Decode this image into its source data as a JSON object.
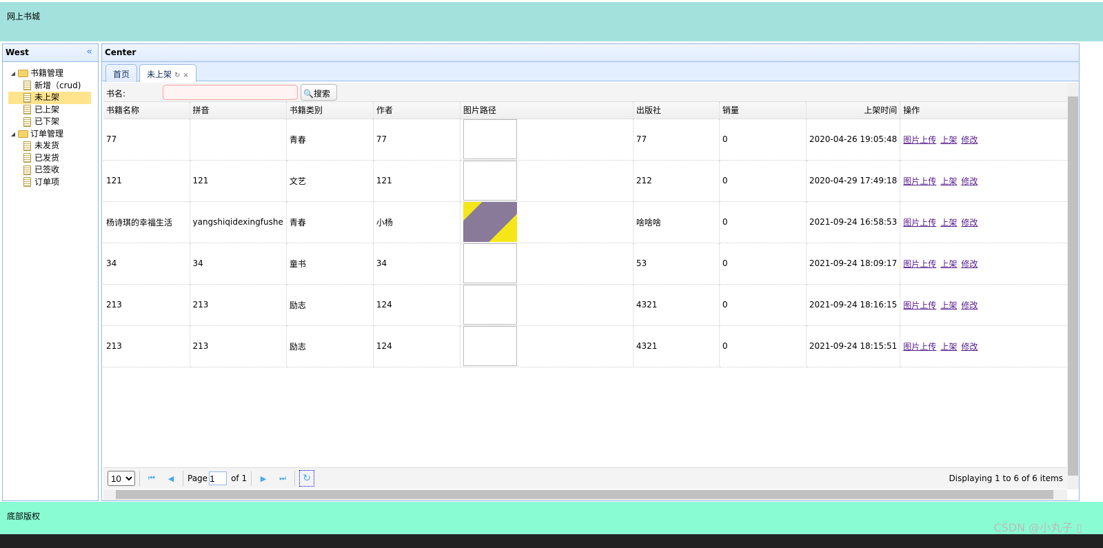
{
  "header": {
    "title": "网上书城"
  },
  "west": {
    "title": "West",
    "collapse_icon": "double-chevron-left",
    "tree": [
      {
        "label": "书籍管理",
        "type": "folder",
        "children": [
          "新增（crud)",
          "未上架",
          "已上架",
          "已下架"
        ]
      },
      {
        "label": "订单管理",
        "type": "folder",
        "children": [
          "未发货",
          "已发货",
          "已签收",
          "订单项"
        ]
      }
    ],
    "selected": "未上架"
  },
  "center": {
    "title": "Center",
    "tabs": [
      {
        "label": "首页"
      },
      {
        "label": "未上架",
        "active": true
      }
    ],
    "search": {
      "label": "书名:",
      "value": "",
      "placeholder": "",
      "button": "搜索"
    },
    "columns": [
      "书籍名称",
      "拼音",
      "书籍类别",
      "作者",
      "图片路径",
      "出版社",
      "销量",
      "上架时间",
      "操作"
    ],
    "rows": [
      {
        "name": "77",
        "pinyin": "",
        "category": "青春",
        "author": "77",
        "image": "broken",
        "publisher": "77",
        "sales": "0",
        "time": "2020-04-26 19:05:48"
      },
      {
        "name": "121",
        "pinyin": "121",
        "category": "文艺",
        "author": "121",
        "image": "broken",
        "publisher": "212",
        "sales": "0",
        "time": "2020-04-29 17:49:18"
      },
      {
        "name": "杨诗琪的幸福生活",
        "pinyin": "yangshiqidexingfushe",
        "category": "青春",
        "author": "小杨",
        "image": "cover",
        "publisher": "啥啥啥",
        "sales": "0",
        "time": "2021-09-24 16:58:53"
      },
      {
        "name": "34",
        "pinyin": "34",
        "category": "童书",
        "author": "34",
        "image": "broken",
        "publisher": "53",
        "sales": "0",
        "time": "2021-09-24 18:09:17"
      },
      {
        "name": "213",
        "pinyin": "213",
        "category": "励志",
        "author": "124",
        "image": "broken",
        "publisher": "4321",
        "sales": "0",
        "time": "2021-09-24 18:16:15"
      },
      {
        "name": "213",
        "pinyin": "213",
        "category": "励志",
        "author": "124",
        "image": "broken",
        "publisher": "4321",
        "sales": "0",
        "time": "2021-09-24 18:15:51"
      }
    ],
    "actions": [
      "图片上传",
      "上架",
      "修改"
    ],
    "pager": {
      "page_size": "10",
      "page_label": "Page",
      "page": "1",
      "of_label": "of 1",
      "display": "Displaying 1 to 6 of 6 items"
    }
  },
  "footer": {
    "text": "底部版权",
    "watermark": "CSDN @小丸子 ▯"
  }
}
